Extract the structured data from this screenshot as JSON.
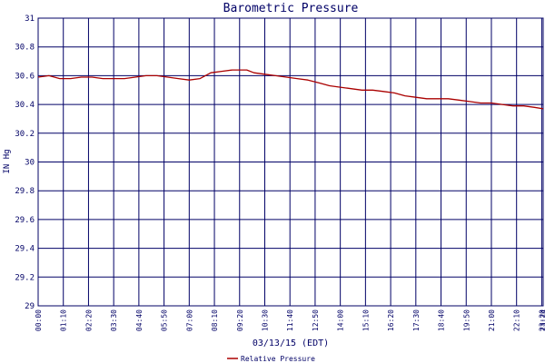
{
  "chart_data": {
    "type": "line",
    "title": "Barometric Pressure",
    "xlabel": "03/13/15 (EDT)",
    "ylabel": "IN Hg",
    "ylim": [
      29,
      31
    ],
    "y_ticks": [
      "29",
      "29.2",
      "29.4",
      "29.6",
      "29.8",
      "30",
      "30.2",
      "30.4",
      "30.6",
      "30.8",
      "31"
    ],
    "x_ticks": [
      "00:00",
      "01:10",
      "02:20",
      "03:30",
      "04:40",
      "05:50",
      "07:00",
      "08:10",
      "09:20",
      "10:30",
      "11:40",
      "12:50",
      "14:00",
      "15:10",
      "16:20",
      "17:30",
      "18:40",
      "19:50",
      "21:00",
      "22:10",
      "23:20",
      "23:24"
    ],
    "grid": true,
    "legend": "bottom-center",
    "colors": {
      "line": "#aa0000",
      "grid": "#000066",
      "text": "#000066"
    },
    "series": [
      {
        "name": "Relative Pressure",
        "x": [
          "00:00",
          "00:30",
          "01:00",
          "01:30",
          "02:00",
          "02:30",
          "03:00",
          "03:30",
          "04:00",
          "04:30",
          "05:00",
          "05:30",
          "06:00",
          "06:30",
          "07:00",
          "07:30",
          "08:00",
          "08:30",
          "09:00",
          "09:20",
          "09:40",
          "10:00",
          "10:30",
          "11:00",
          "11:30",
          "12:00",
          "12:30",
          "13:00",
          "13:30",
          "14:00",
          "14:30",
          "15:00",
          "15:30",
          "16:00",
          "16:30",
          "17:00",
          "17:30",
          "18:00",
          "18:30",
          "19:00",
          "19:30",
          "20:00",
          "20:30",
          "21:00",
          "21:30",
          "22:00",
          "22:30",
          "23:00",
          "23:24"
        ],
        "values": [
          30.59,
          30.6,
          30.58,
          30.58,
          30.59,
          30.59,
          30.58,
          30.58,
          30.58,
          30.59,
          30.6,
          30.6,
          30.59,
          30.58,
          30.57,
          30.58,
          30.62,
          30.63,
          30.64,
          30.64,
          30.64,
          30.62,
          30.61,
          30.6,
          30.59,
          30.58,
          30.57,
          30.55,
          30.53,
          30.52,
          30.51,
          30.5,
          30.5,
          30.49,
          30.48,
          30.46,
          30.45,
          30.44,
          30.44,
          30.44,
          30.43,
          30.42,
          30.41,
          30.41,
          30.4,
          30.39,
          30.39,
          30.38,
          30.37
        ]
      }
    ]
  }
}
